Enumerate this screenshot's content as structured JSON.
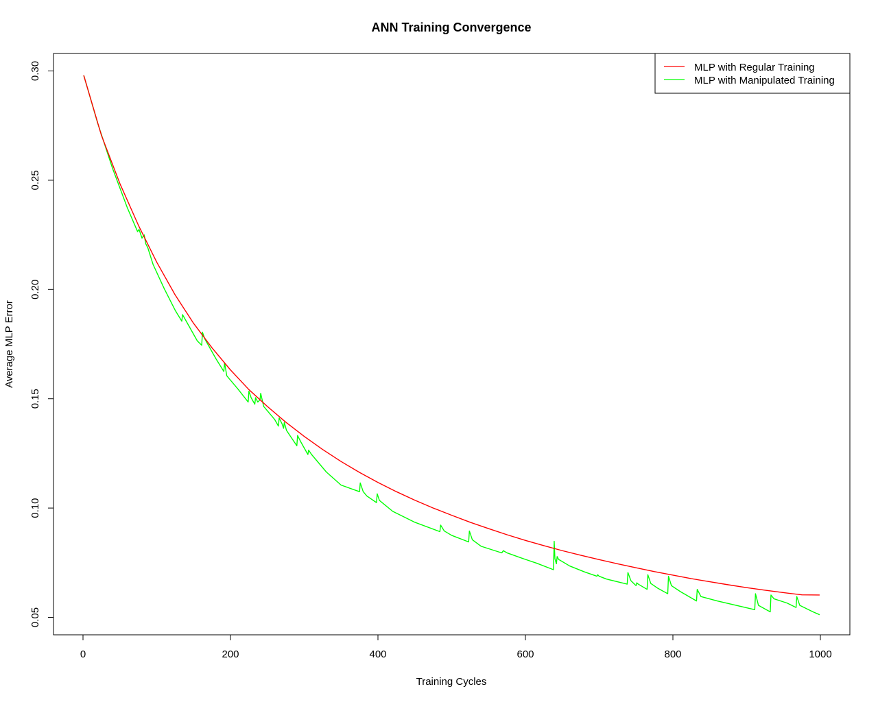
{
  "chart_data": {
    "type": "line",
    "title": "ANN Training Convergence",
    "xlabel": "Training Cycles",
    "ylabel": "Average MLP Error",
    "xlim": [
      -40,
      1040
    ],
    "ylim": [
      0.042,
      0.308
    ],
    "xticks": [
      0,
      200,
      400,
      600,
      800,
      1000
    ],
    "yticks": [
      0.05,
      0.1,
      0.15,
      0.2,
      0.25,
      0.3
    ],
    "ytick_labels": [
      "0.05",
      "0.10",
      "0.15",
      "0.20",
      "0.25",
      "0.30"
    ],
    "legend_position": "top-right",
    "grid": false,
    "series": [
      {
        "name": "MLP with Regular Training",
        "color": "#ff0000",
        "x": [
          1,
          25,
          50,
          75,
          100,
          125,
          150,
          175,
          200,
          225,
          250,
          275,
          300,
          325,
          350,
          375,
          400,
          425,
          450,
          475,
          500,
          525,
          550,
          575,
          600,
          625,
          650,
          675,
          700,
          725,
          750,
          775,
          800,
          825,
          850,
          875,
          900,
          925,
          950,
          975,
          999
        ],
        "y": [
          0.298,
          0.2705,
          0.2485,
          0.2295,
          0.2125,
          0.1975,
          0.1845,
          0.1733,
          0.1632,
          0.1542,
          0.1465,
          0.1393,
          0.1328,
          0.1268,
          0.1213,
          0.1163,
          0.1117,
          0.1075,
          0.1036,
          0.1,
          0.0967,
          0.0935,
          0.0906,
          0.0878,
          0.0852,
          0.0828,
          0.0805,
          0.0784,
          0.0764,
          0.0745,
          0.0727,
          0.0709,
          0.0693,
          0.0677,
          0.0663,
          0.0649,
          0.0636,
          0.0624,
          0.0613,
          0.0603,
          0.0602
        ]
      },
      {
        "name": "MLP with Manipulated Training",
        "color": "#00ff00",
        "x": [
          1,
          20,
          40,
          60,
          74,
          76,
          80,
          83,
          85,
          88,
          95,
          110,
          125,
          134,
          135,
          140,
          155,
          161,
          162,
          165,
          180,
          191,
          192,
          195,
          210,
          224,
          225,
          228,
          233,
          234,
          237,
          240,
          241,
          245,
          260,
          265,
          266,
          270,
          272,
          273,
          276,
          290,
          291,
          295,
          305,
          306,
          310,
          315,
          330,
          350,
          375,
          376,
          380,
          385,
          398,
          399,
          402,
          420,
          450,
          484,
          485,
          490,
          500,
          523,
          524,
          528,
          540,
          565,
          568,
          570,
          575,
          600,
          615,
          638,
          639,
          640,
          642,
          643,
          645,
          660,
          680,
          697,
          698,
          700,
          710,
          738,
          739,
          743,
          750,
          751,
          753,
          765,
          766,
          770,
          780,
          793,
          794,
          798,
          810,
          832,
          833,
          838,
          860,
          911,
          912,
          916,
          932,
          933,
          937,
          955,
          967,
          968,
          972,
          990,
          999
        ],
        "y": [
          0.298,
          0.276,
          0.2555,
          0.2375,
          0.2265,
          0.2275,
          0.2235,
          0.225,
          0.221,
          0.219,
          0.2115,
          0.2005,
          0.1905,
          0.1855,
          0.1885,
          0.1855,
          0.1765,
          0.1745,
          0.1805,
          0.1775,
          0.1685,
          0.1625,
          0.1665,
          0.1605,
          0.1545,
          0.1485,
          0.1535,
          0.1505,
          0.1475,
          0.1505,
          0.1485,
          0.1495,
          0.1525,
          0.1465,
          0.1405,
          0.1375,
          0.1412,
          0.1385,
          0.1365,
          0.1392,
          0.1355,
          0.1285,
          0.1332,
          0.1305,
          0.1245,
          0.1265,
          0.1245,
          0.1225,
          0.1165,
          0.1105,
          0.1075,
          0.1115,
          0.1075,
          0.1055,
          0.1025,
          0.1065,
          0.1035,
          0.0985,
          0.0935,
          0.0892,
          0.0922,
          0.0895,
          0.0875,
          0.0845,
          0.0895,
          0.0855,
          0.0825,
          0.0798,
          0.0795,
          0.0805,
          0.0795,
          0.0765,
          0.0748,
          0.0718,
          0.0848,
          0.0768,
          0.0745,
          0.0778,
          0.0765,
          0.0735,
          0.0708,
          0.0688,
          0.0695,
          0.0688,
          0.0675,
          0.0652,
          0.0705,
          0.0668,
          0.0645,
          0.0658,
          0.0652,
          0.0628,
          0.0695,
          0.0655,
          0.0632,
          0.0608,
          0.0688,
          0.0645,
          0.0618,
          0.0575,
          0.0628,
          0.0595,
          0.0575,
          0.0535,
          0.0608,
          0.0555,
          0.0525,
          0.0602,
          0.0585,
          0.0565,
          0.0545,
          0.0595,
          0.0555,
          0.0525,
          0.0512
        ]
      }
    ]
  }
}
